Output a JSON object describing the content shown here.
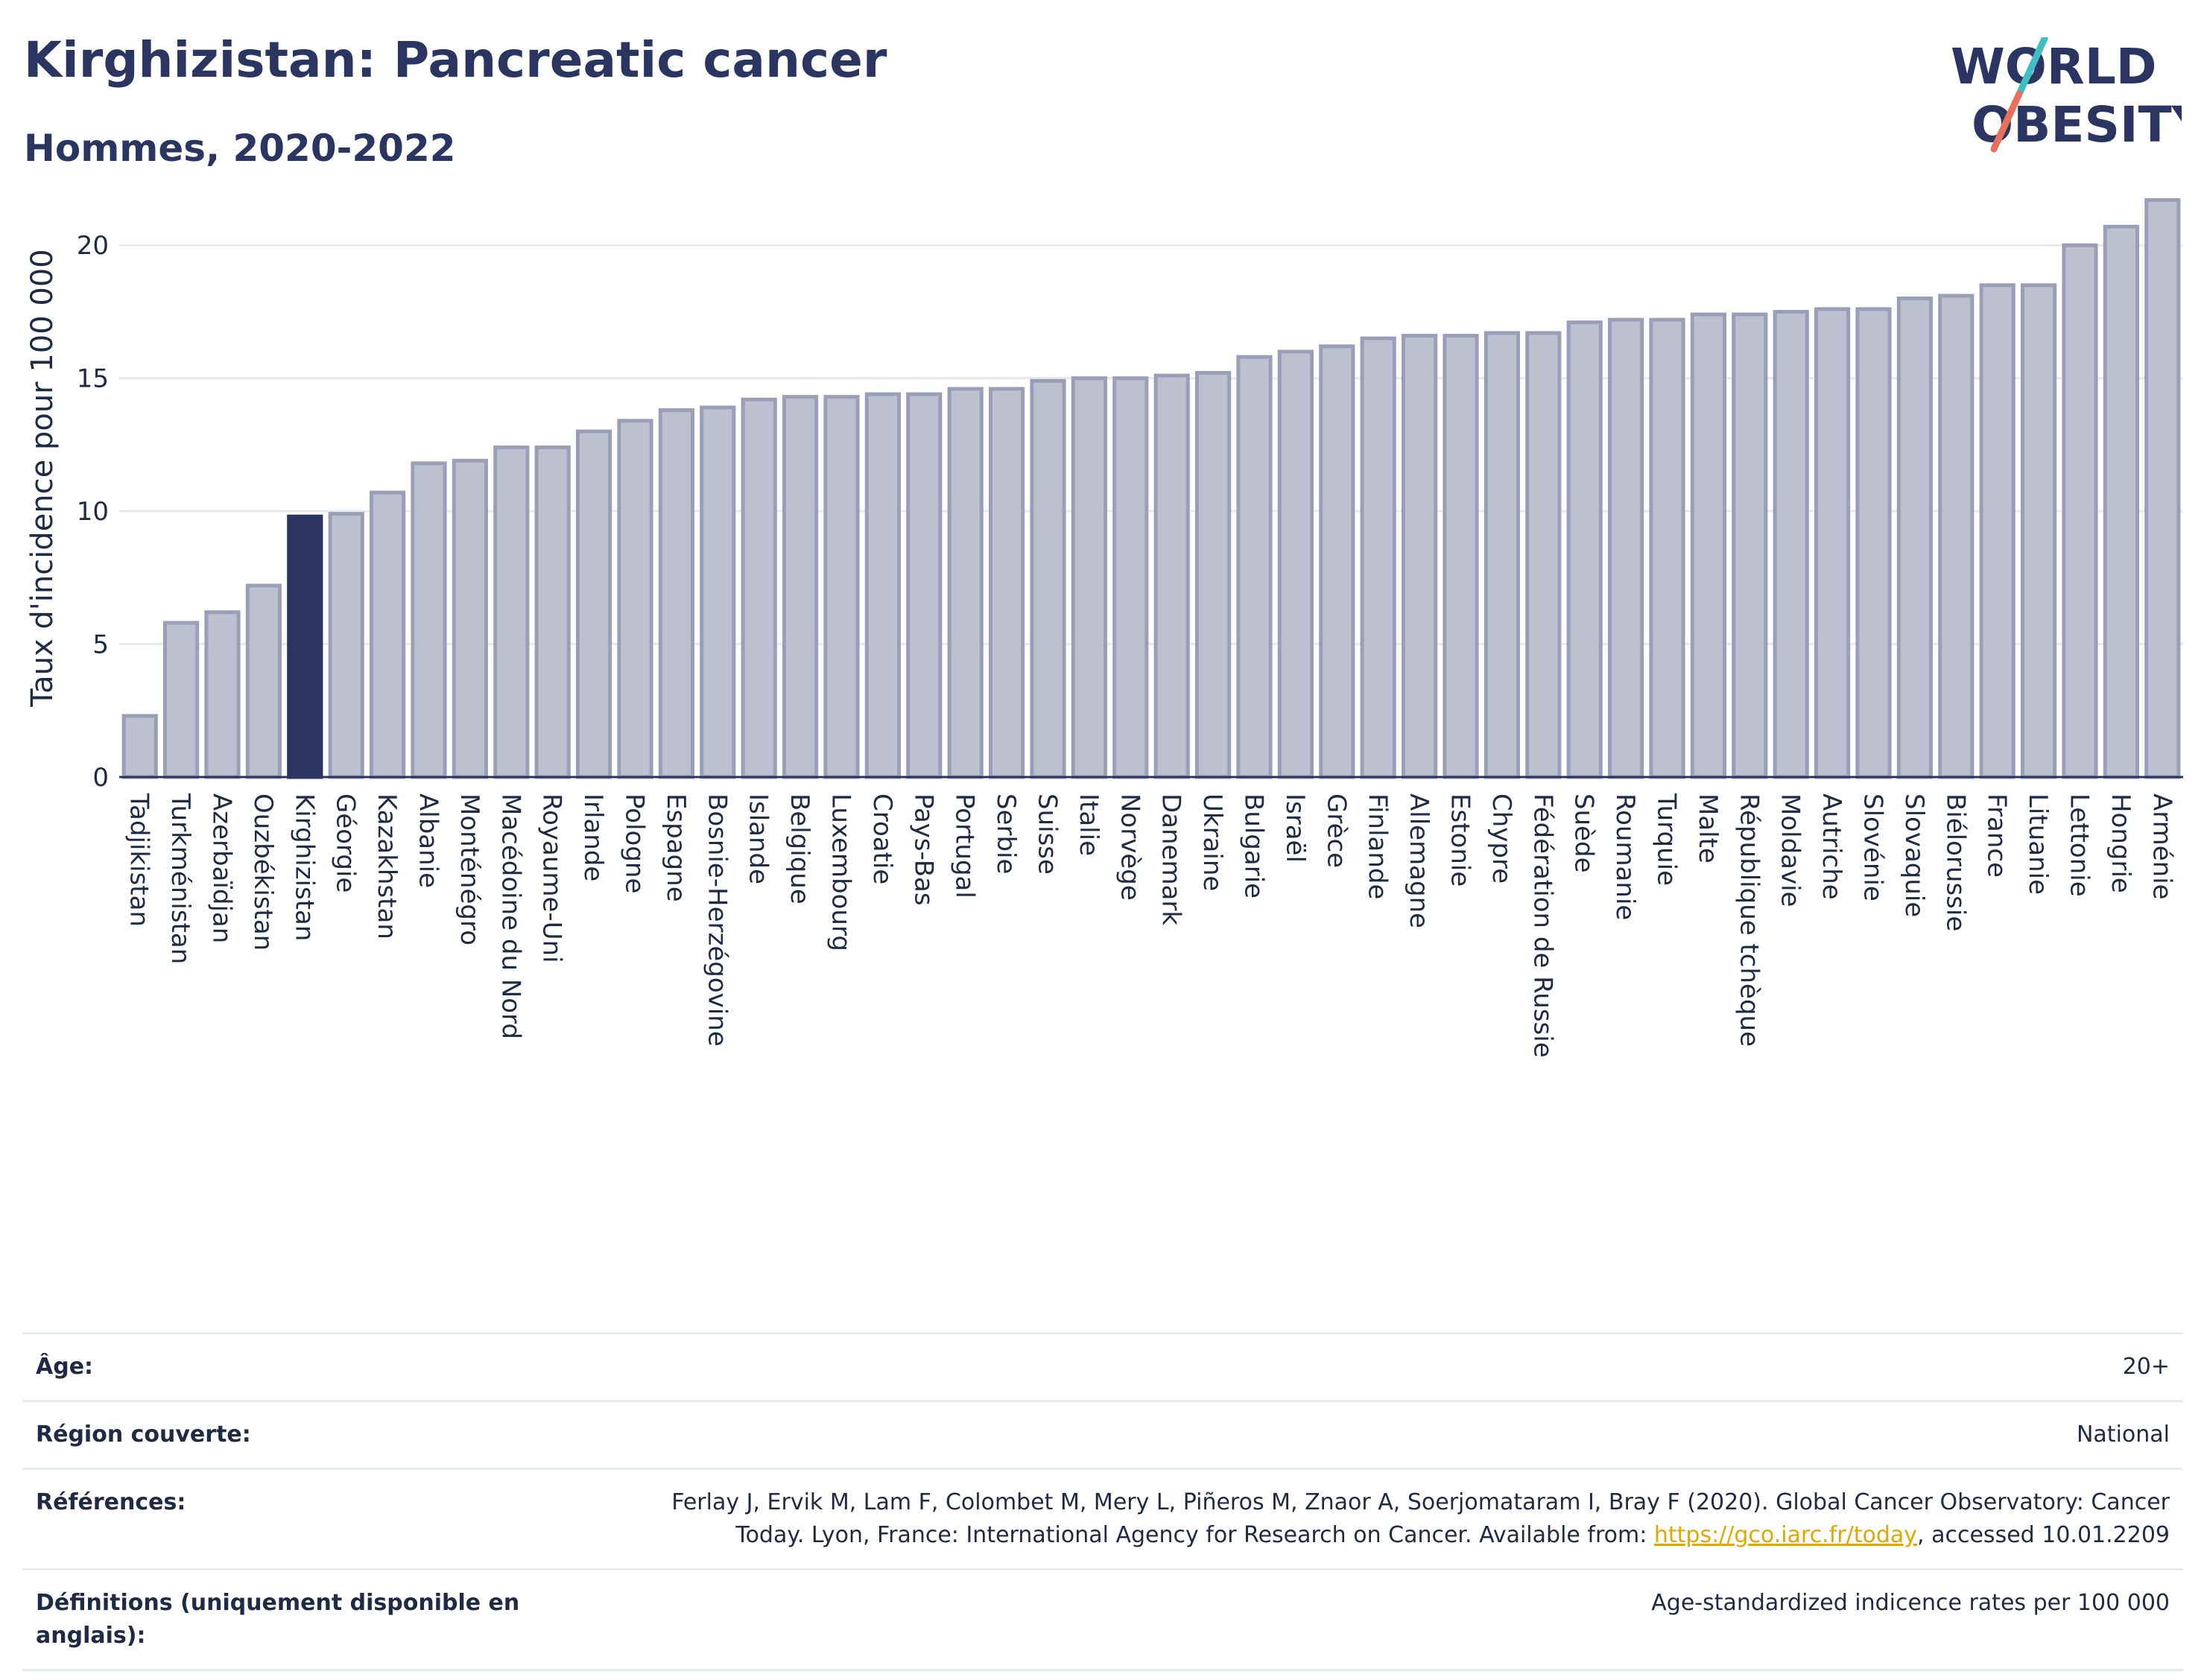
{
  "header": {
    "title": "Kirghizistan: Pancreatic cancer",
    "subtitle": "Hommes, 2020-2022"
  },
  "logo": {
    "line1": "WORLD",
    "line2": "OBESITY",
    "slash_colors": [
      "#3fbfc4",
      "#e8705d"
    ]
  },
  "colors": {
    "bar": "#bcc0cf",
    "bar_stroke": "#9a9fb8",
    "highlight": "#2b3561",
    "grid": "#e6e9ef"
  },
  "chart_data": {
    "type": "bar",
    "ylabel": "Taux d'incidence pour 100 000",
    "ylim": [
      0,
      22.5
    ],
    "yticks": [
      0,
      5,
      10,
      15,
      20
    ],
    "highlight": "Kirghizistan",
    "categories": [
      "Tadjikistan",
      "Turkménistan",
      "Azerbaïdjan",
      "Ouzbékistan",
      "Kirghizistan",
      "Géorgie",
      "Kazakhstan",
      "Albanie",
      "Monténégro",
      "Macédoine du Nord",
      "Royaume-Uni",
      "Irlande",
      "Pologne",
      "Espagne",
      "Bosnie-Herzégovine",
      "Islande",
      "Belgique",
      "Luxembourg",
      "Croatie",
      "Pays-Bas",
      "Portugal",
      "Serbie",
      "Suisse",
      "Italie",
      "Norvège",
      "Danemark",
      "Ukraine",
      "Bulgarie",
      "Israël",
      "Grèce",
      "Finlande",
      "Allemagne",
      "Estonie",
      "Chypre",
      "Fédération de Russie",
      "Suède",
      "Roumanie",
      "Turquie",
      "Malte",
      "République tchèque",
      "Moldavie",
      "Autriche",
      "Slovénie",
      "Slovaquie",
      "Biélorussie",
      "France",
      "Lituanie",
      "Lettonie",
      "Hongrie",
      "Arménie"
    ],
    "values": [
      2.3,
      5.8,
      6.2,
      7.2,
      9.8,
      9.9,
      10.7,
      11.8,
      11.9,
      12.4,
      12.4,
      13.0,
      13.4,
      13.8,
      13.9,
      14.2,
      14.3,
      14.3,
      14.4,
      14.4,
      14.6,
      14.6,
      14.9,
      15.0,
      15.0,
      15.1,
      15.2,
      15.8,
      16.0,
      16.2,
      16.5,
      16.6,
      16.6,
      16.7,
      16.7,
      17.1,
      17.2,
      17.2,
      17.4,
      17.4,
      17.5,
      17.6,
      17.6,
      18.0,
      18.1,
      18.5,
      18.5,
      20.0,
      20.7,
      21.7
    ]
  },
  "info": {
    "rows": [
      {
        "label": "Âge:",
        "value": "20+"
      },
      {
        "label": "Région couverte:",
        "value": "National"
      },
      {
        "label": "Références:",
        "value_line1": "Ferlay J, Ervik M, Lam F, Colombet M, Mery L, Piñeros M, Znaor A, Soerjomataram I, Bray F (2020). Global Cancer Observatory: Cancer",
        "value_prefix": "Today. Lyon, France: International Agency for Research on Cancer. Available from: ",
        "link": "https://gco.iarc.fr/today",
        "value_suffix": ", accessed 10.01.2209"
      },
      {
        "label": "Définitions (uniquement disponible en anglais):",
        "value": "Age-standardized indicence rates per 100 000"
      }
    ]
  }
}
